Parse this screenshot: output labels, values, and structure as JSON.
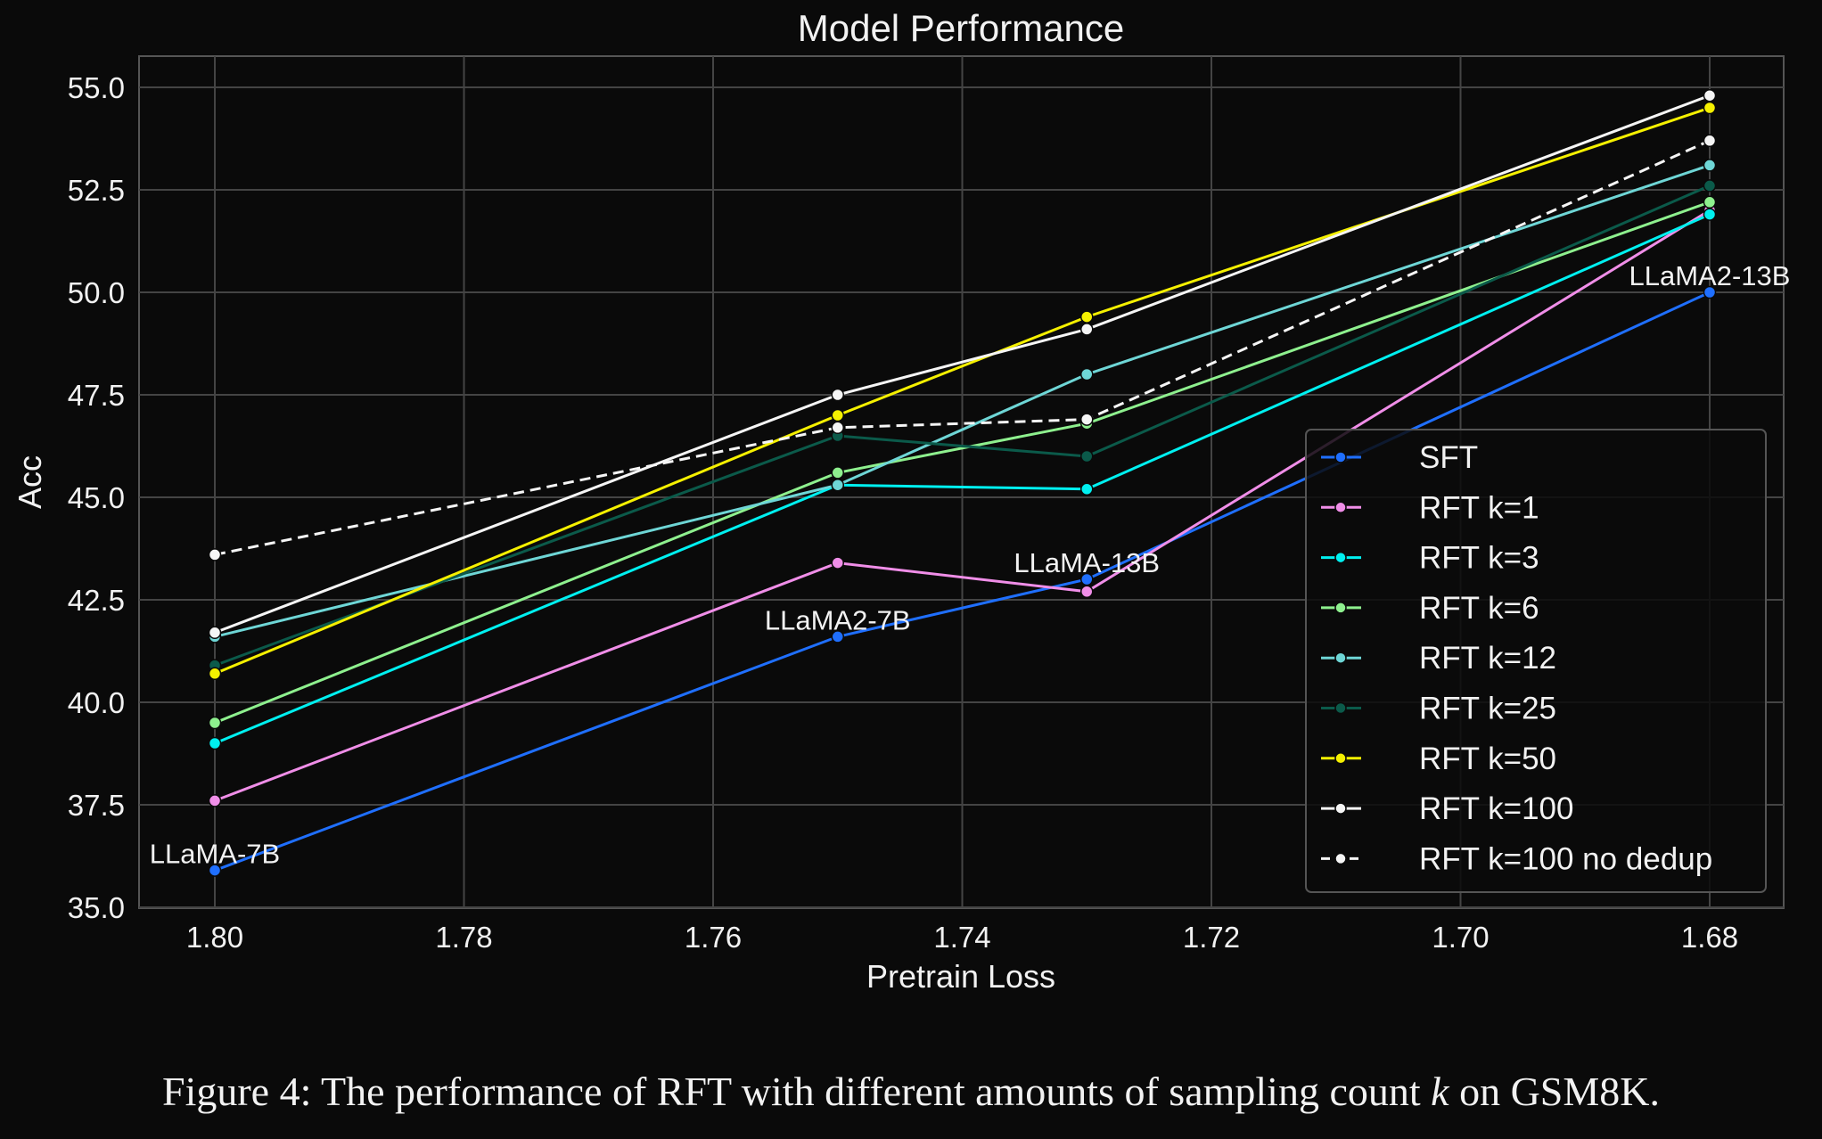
{
  "chart_data": {
    "type": "line",
    "title": "Model Performance",
    "xlabel": "Pretrain Loss",
    "ylabel": "Acc",
    "x": [
      1.8,
      1.75,
      1.73,
      1.68
    ],
    "xlim": [
      1.8,
      1.68
    ],
    "x_inverted": true,
    "ylim": [
      35.0,
      55.0
    ],
    "xticks": [
      "1.80",
      "1.78",
      "1.76",
      "1.74",
      "1.72",
      "1.70",
      "1.68"
    ],
    "yticks": [
      "35.0",
      "37.5",
      "40.0",
      "42.5",
      "45.0",
      "47.5",
      "50.0",
      "52.5",
      "55.0"
    ],
    "grid": true,
    "legend_placement": "lower-right",
    "annotations": [
      {
        "text": "LLaMA-7B",
        "x": 1.8,
        "y": 35.9
      },
      {
        "text": "LLaMA2-7B",
        "x": 1.75,
        "y": 41.6
      },
      {
        "text": "LLaMA-13B",
        "x": 1.73,
        "y": 43.0
      },
      {
        "text": "LLaMA2-13B",
        "x": 1.68,
        "y": 50.0
      }
    ],
    "series": [
      {
        "name": "SFT",
        "values": [
          35.9,
          41.6,
          43.0,
          50.0
        ],
        "color": "#1f6fff",
        "dashed": false
      },
      {
        "name": "RFT k=1",
        "values": [
          37.6,
          43.4,
          42.7,
          52.0
        ],
        "color": "#f08ee8",
        "dashed": false
      },
      {
        "name": "RFT k=3",
        "values": [
          39.0,
          45.3,
          45.2,
          51.9
        ],
        "color": "#00f0f0",
        "dashed": false
      },
      {
        "name": "RFT k=6",
        "values": [
          39.5,
          45.6,
          46.8,
          52.2
        ],
        "color": "#8ef08e",
        "dashed": false
      },
      {
        "name": "RFT k=12",
        "values": [
          41.6,
          45.3,
          48.0,
          53.1
        ],
        "color": "#6ed6d6",
        "dashed": false
      },
      {
        "name": "RFT k=25",
        "values": [
          40.9,
          46.5,
          46.0,
          52.6
        ],
        "color": "#0b5a4a",
        "dashed": false
      },
      {
        "name": "RFT k=50",
        "values": [
          40.7,
          47.0,
          49.4,
          54.5
        ],
        "color": "#f5f000",
        "dashed": false
      },
      {
        "name": "RFT k=100",
        "values": [
          41.7,
          47.5,
          49.1,
          54.8
        ],
        "color": "#f5f5f5",
        "dashed": false
      },
      {
        "name": "RFT k=100 no dedup",
        "values": [
          43.6,
          46.7,
          46.9,
          53.7
        ],
        "color": "#f5f5f5",
        "dashed": true
      }
    ]
  },
  "caption": {
    "prefix": "Figure 4: The performance of RFT with different amounts of sampling count ",
    "var": "k",
    "suffix": " on GSM8K."
  }
}
